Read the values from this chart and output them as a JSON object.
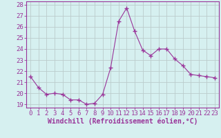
{
  "x": [
    0,
    1,
    2,
    3,
    4,
    5,
    6,
    7,
    8,
    9,
    10,
    11,
    12,
    13,
    14,
    15,
    16,
    17,
    18,
    19,
    20,
    21,
    22,
    23
  ],
  "y": [
    21.5,
    20.5,
    19.9,
    20.0,
    19.9,
    19.4,
    19.4,
    19.0,
    19.1,
    19.9,
    22.3,
    26.5,
    27.7,
    25.6,
    23.9,
    23.4,
    24.0,
    24.0,
    23.1,
    22.5,
    21.7,
    21.6,
    21.5,
    21.4
  ],
  "line_color": "#993399",
  "marker": "+",
  "marker_size": 4,
  "bg_color": "#d6f0f0",
  "grid_color": "#bbcccc",
  "xlabel": "Windchill (Refroidissement éolien,°C)",
  "ylabel_ticks": [
    19,
    20,
    21,
    22,
    23,
    24,
    25,
    26,
    27,
    28
  ],
  "xlim": [
    -0.5,
    23.5
  ],
  "ylim": [
    18.7,
    28.3
  ],
  "xlabel_fontsize": 7,
  "tick_fontsize": 6.5,
  "label_color": "#993399"
}
